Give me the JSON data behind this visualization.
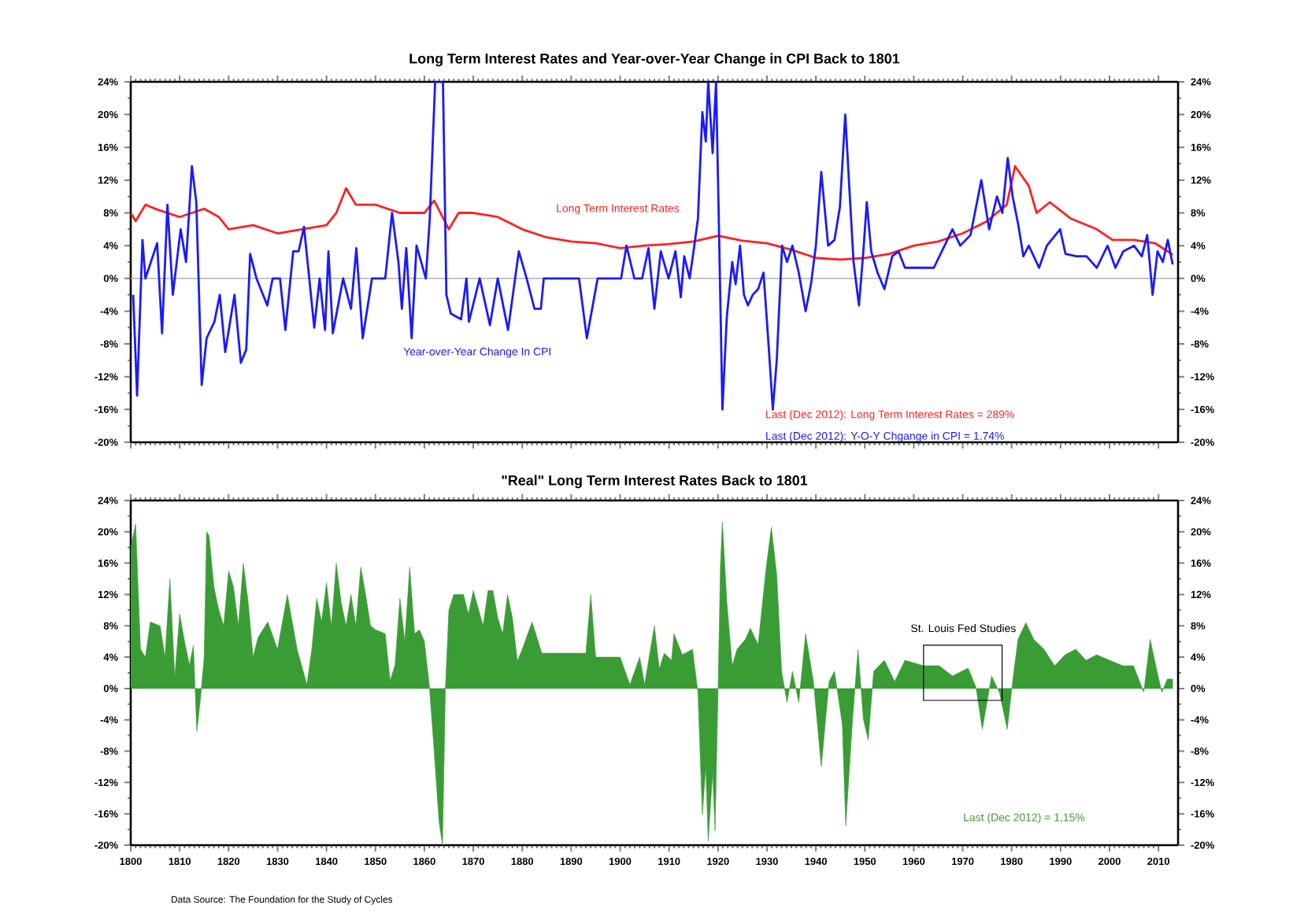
{
  "chart_data": [
    {
      "type": "line",
      "title": "Long Term Interest Rates and Year-over-Year Change in CPI Back to 1801",
      "xlim": [
        1800,
        2014
      ],
      "xticks": [
        1800,
        1810,
        1820,
        1830,
        1840,
        1850,
        1860,
        1870,
        1880,
        1890,
        1900,
        1910,
        1920,
        1930,
        1940,
        1950,
        1960,
        1970,
        1980,
        1990,
        2000,
        2010
      ],
      "ylim": [
        -20,
        24
      ],
      "yticks": [
        {
          "value": -20,
          "label": "-20%"
        },
        {
          "value": -16,
          "label": "-16%"
        },
        {
          "value": -12,
          "label": "-12%"
        },
        {
          "value": -8,
          "label": "-8%"
        },
        {
          "value": -4,
          "label": "-4%"
        },
        {
          "value": 0,
          "label": "0%"
        },
        {
          "value": 4,
          "label": "4%"
        },
        {
          "value": 8,
          "label": "8%"
        },
        {
          "value": 12,
          "label": "12%"
        },
        {
          "value": 16,
          "label": "16%"
        },
        {
          "value": 20,
          "label": "20%"
        },
        {
          "value": 24,
          "label": "24%"
        }
      ],
      "y2lim": [
        -20,
        24
      ],
      "y2ticks": [
        {
          "value": -20,
          "label": "-20%"
        },
        {
          "value": -16,
          "label": "-16%"
        },
        {
          "value": -12,
          "label": "-12%"
        },
        {
          "value": -8,
          "label": "-8%"
        },
        {
          "value": -4,
          "label": "-4%"
        },
        {
          "value": 0,
          "label": "0%"
        },
        {
          "value": 4,
          "label": "4%"
        },
        {
          "value": 8,
          "label": "8%"
        },
        {
          "value": 12,
          "label": "12%"
        },
        {
          "value": 16,
          "label": "16%"
        },
        {
          "value": 20,
          "label": "20%"
        },
        {
          "value": 24,
          "label": "24%"
        }
      ],
      "tick_labels": "y",
      "ref_lines": [
        {
          "axis": "y",
          "value": 0,
          "color": "#b4b4b4"
        }
      ],
      "annotations": [
        "Last (Dec 2012): Long Term Interest Rates = 289%",
        "Last (Dec 2012): Y-O-Y Chgange in CPI      = 1.74%"
      ],
      "series": [
        {
          "name": "Long Term Interest Rates",
          "color": "#ff2020",
          "x": [
            1800,
            1801,
            1803,
            1805,
            1810,
            1815,
            1818,
            1820,
            1825,
            1830,
            1835,
            1840,
            1842,
            1844,
            1846,
            1850,
            1855,
            1860,
            1862,
            1865,
            1867,
            1870,
            1875,
            1880,
            1885,
            1890,
            1895,
            1900,
            1905,
            1910,
            1915,
            1920,
            1925,
            1930,
            1935,
            1940,
            1945,
            1950,
            1955,
            1960,
            1965,
            1970,
            1975,
            1979,
            1980.7,
            1983.5,
            1985.1,
            1987.8,
            1992.1,
            1997.4,
            2000.6,
            2005,
            2009.3,
            2012.9
          ],
          "values": [
            8,
            7,
            9,
            8.5,
            7.5,
            8.5,
            7.5,
            6,
            6.5,
            5.5,
            6,
            6.5,
            8,
            11,
            9,
            9,
            8,
            8,
            9.5,
            6,
            8,
            8,
            7.5,
            6,
            5,
            4.5,
            4.3,
            3.7,
            4,
            4.2,
            4.5,
            5.2,
            4.6,
            4.3,
            3.5,
            2.5,
            2.3,
            2.5,
            3,
            4,
            4.5,
            5.5,
            7,
            9,
            13.7,
            11.3,
            8,
            9.3,
            7.3,
            6,
            4.7,
            4.7,
            4.3,
            2.9
          ]
        },
        {
          "name": "Year-over-Year Change In CPI",
          "color": "#1a1aff",
          "x": [
            1800.5,
            1801.3,
            1802.4,
            1803,
            1805.4,
            1806.4,
            1807.5,
            1808.6,
            1810.2,
            1811.3,
            1812.5,
            1813.4,
            1814.5,
            1815.5,
            1817.1,
            1818.2,
            1819.3,
            1821.2,
            1822.5,
            1823.6,
            1824.4,
            1825.7,
            1827.9,
            1829,
            1830.5,
            1831.6,
            1833.2,
            1834.3,
            1835.4,
            1837.5,
            1838.6,
            1839.7,
            1840.4,
            1841.3,
            1843.4,
            1845,
            1846.1,
            1847.4,
            1849.3,
            1852,
            1853.4,
            1854.7,
            1855.4,
            1856.3,
            1857.4,
            1858.4,
            1860.3,
            1861.1,
            1862.2,
            1863.8,
            1864.5,
            1865.4,
            1867.5,
            1868.6,
            1869.1,
            1871.3,
            1873.4,
            1875,
            1877.1,
            1879.3,
            1880.9,
            1882.5,
            1883.8,
            1884.4,
            1891.6,
            1893.2,
            1895.4,
            1900.2,
            1901.3,
            1902.9,
            1904.5,
            1905.8,
            1907,
            1908.3,
            1909.9,
            1911.3,
            1912.4,
            1913.1,
            1914.2,
            1915,
            1915.9,
            1916.8,
            1917.5,
            1918,
            1918.9,
            1919.6,
            1920.2,
            1920.9,
            1921.8,
            1922.9,
            1923.6,
            1924.5,
            1925.3,
            1926.1,
            1927.1,
            1928.2,
            1929.3,
            1930.4,
            1931.2,
            1932,
            1933.1,
            1934.1,
            1935.2,
            1936.5,
            1937.9,
            1939,
            1940,
            1941.1,
            1942.5,
            1943.8,
            1944.9,
            1946,
            1947,
            1947.7,
            1948.8,
            1949.7,
            1950.4,
            1951.3,
            1952.6,
            1954,
            1955.6,
            1956.9,
            1958.2,
            1959.8,
            1962,
            1964.1,
            1966.3,
            1967.9,
            1969.5,
            1971.6,
            1973.8,
            1975.4,
            1977,
            1978.1,
            1979.2,
            1980.2,
            1981.3,
            1982.4,
            1983.5,
            1985.6,
            1987.2,
            1989.9,
            1991,
            1993.2,
            1995.3,
            1997.4,
            1999.6,
            2001.2,
            2002.8,
            2005,
            2006.6,
            2007.7,
            2008.8,
            2009.8,
            2010.9,
            2011.9,
            2012.9
          ],
          "values": [
            -2,
            -14.3,
            4.7,
            0,
            4.3,
            -6.7,
            9,
            -2,
            6,
            2,
            13.7,
            9.3,
            -13,
            -7.3,
            -5.3,
            -2,
            -9,
            -2,
            -10.3,
            -8.7,
            3,
            0,
            -3.3,
            0,
            0,
            -6.3,
            3.3,
            3.3,
            6.3,
            -6,
            0,
            -6.3,
            3.3,
            -6.7,
            0,
            -3.7,
            3.7,
            -7.3,
            0,
            0,
            8,
            2,
            -3.7,
            3.7,
            -7.3,
            4,
            0,
            7.3,
            24,
            24,
            -2,
            -4.3,
            -5,
            0,
            -5.3,
            0,
            -5.7,
            0,
            -6.3,
            3.3,
            0,
            -3.7,
            -3.7,
            0,
            0,
            -7.3,
            0,
            0,
            4,
            0,
            0,
            3.7,
            -3.7,
            3.3,
            0,
            3.3,
            -2.3,
            2.7,
            0,
            3.3,
            7.3,
            20.3,
            16.7,
            24,
            15.3,
            24,
            6,
            -16,
            -4.7,
            2,
            -0.7,
            4,
            -2,
            -3.3,
            -2,
            -1.3,
            0.7,
            -8.7,
            -16,
            -10,
            4,
            2,
            4,
            0.7,
            -4,
            -0.7,
            4,
            13,
            4,
            4.7,
            8.7,
            20,
            9.3,
            2,
            -3.3,
            3.3,
            9.3,
            3.3,
            0.7,
            -1.3,
            2.7,
            3.3,
            1.3,
            1.3,
            1.3,
            1.3,
            4,
            6,
            4,
            5.3,
            12,
            6,
            10,
            8,
            14.7,
            10,
            6.7,
            2.7,
            4,
            1.3,
            4,
            6,
            3,
            2.7,
            2.7,
            1.3,
            4,
            1.3,
            3.3,
            4,
            2.7,
            5.3,
            -2,
            3.3,
            2,
            4.7,
            1.7
          ]
        }
      ]
    },
    {
      "type": "area",
      "title": "\"Real\" Long Term Interest Rates Back to 1801",
      "xlim": [
        1800,
        2014
      ],
      "xticks": [
        1800,
        1810,
        1820,
        1830,
        1840,
        1850,
        1860,
        1870,
        1880,
        1890,
        1900,
        1910,
        1920,
        1930,
        1940,
        1950,
        1960,
        1970,
        1980,
        1990,
        2000,
        2010
      ],
      "ylim": [
        -20,
        24
      ],
      "yticks": [
        {
          "value": -20,
          "label": "-20%"
        },
        {
          "value": -16,
          "label": "-16%"
        },
        {
          "value": -12,
          "label": "-12%"
        },
        {
          "value": -8,
          "label": "-8%"
        },
        {
          "value": -4,
          "label": "-4%"
        },
        {
          "value": 0,
          "label": "0%"
        },
        {
          "value": 4,
          "label": "4%"
        },
        {
          "value": 8,
          "label": "8%"
        },
        {
          "value": 12,
          "label": "12%"
        },
        {
          "value": 16,
          "label": "16%"
        },
        {
          "value": 20,
          "label": "20%"
        },
        {
          "value": 24,
          "label": "24%"
        }
      ],
      "y2lim": [
        -20,
        24
      ],
      "y2ticks": [
        {
          "value": -20,
          "label": "-20%"
        },
        {
          "value": -16,
          "label": "-16%"
        },
        {
          "value": -12,
          "label": "-12%"
        },
        {
          "value": -8,
          "label": "-8%"
        },
        {
          "value": -4,
          "label": "-4%"
        },
        {
          "value": 0,
          "label": "0%"
        },
        {
          "value": 4,
          "label": "4%"
        },
        {
          "value": 8,
          "label": "8%"
        },
        {
          "value": 12,
          "label": "12%"
        },
        {
          "value": 16,
          "label": "16%"
        },
        {
          "value": 20,
          "label": "20%"
        },
        {
          "value": 24,
          "label": "24%"
        }
      ],
      "annotations": [
        "Last (Dec 2012) = 1,15%",
        "St. Louis Fed Studies",
        "Data Source: The Foundation for the Study of Cycles"
      ],
      "series": [
        {
          "color": "#3a9c35",
          "x": [
            1800,
            1801,
            1802,
            1803,
            1804,
            1806,
            1807,
            1808,
            1809,
            1810,
            1811,
            1812,
            1812.8,
            1813.5,
            1814.3,
            1815,
            1815.5,
            1816,
            1817,
            1818,
            1819,
            1820,
            1821,
            1822,
            1823,
            1824,
            1825,
            1826,
            1828,
            1830,
            1832,
            1834,
            1836,
            1837,
            1838,
            1839,
            1840,
            1841,
            1842,
            1843,
            1844,
            1845,
            1846,
            1847,
            1848,
            1849,
            1850,
            1852,
            1853,
            1854,
            1855,
            1856,
            1857,
            1858,
            1859,
            1860,
            1861,
            1862,
            1863,
            1863.7,
            1864.3,
            1865,
            1866,
            1868,
            1869,
            1870,
            1872,
            1873,
            1874,
            1875,
            1876,
            1877,
            1878,
            1879,
            1880,
            1882,
            1884,
            1890,
            1893,
            1894,
            1895,
            1900,
            1902,
            1904,
            1905,
            1907,
            1908,
            1909,
            1910.5,
            1911,
            1912.7,
            1914.8,
            1915.9,
            1916.8,
            1917.5,
            1918,
            1918.9,
            1919.4,
            1920,
            1920.5,
            1920.9,
            1921.8,
            1922.9,
            1923.9,
            1925.6,
            1926.6,
            1928.2,
            1929.8,
            1930.9,
            1932,
            1933,
            1934.1,
            1935.2,
            1936.5,
            1937.9,
            1939.5,
            1941.1,
            1942.7,
            1943.8,
            1945.4,
            1946.1,
            1947.5,
            1948.6,
            1949.7,
            1950.7,
            1951.8,
            1954,
            1956.1,
            1958.2,
            1962,
            1965.2,
            1967.9,
            1971.1,
            1972.7,
            1974,
            1975.9,
            1977.5,
            1979.1,
            1980.2,
            1981.3,
            1982.9,
            1984.5,
            1986.6,
            1988.8,
            1990.9,
            1993.1,
            1995.2,
            1997.4,
            2000,
            2002.7,
            2004.9,
            2007,
            2008.3,
            2009.7,
            2010.7,
            2011.8,
            2012.9
          ],
          "values": [
            18,
            21,
            5,
            4,
            8.5,
            8,
            4,
            14,
            1.5,
            9.5,
            6,
            3,
            5.5,
            -5.5,
            -1,
            4,
            20,
            19.5,
            13,
            10,
            8,
            15,
            13,
            8,
            16,
            11,
            4,
            6.5,
            8.5,
            5,
            12,
            5,
            0.5,
            5,
            11.5,
            8.5,
            13.5,
            8,
            16,
            11,
            8,
            12,
            8,
            15.5,
            12,
            8,
            7.5,
            7,
            1,
            3,
            11.5,
            6,
            15.5,
            7,
            7.5,
            6,
            0.5,
            -8,
            -17,
            -20,
            0,
            10,
            12,
            12,
            9.5,
            12.5,
            8,
            12.5,
            12.5,
            9,
            7,
            12,
            9,
            3.5,
            5,
            8.5,
            4.5,
            4.5,
            4.5,
            12,
            4,
            4,
            0.5,
            4,
            0.5,
            8,
            2.5,
            4.5,
            3.6,
            7,
            4.3,
            5,
            -0.5,
            -16.1,
            -10,
            -19.5,
            -10.7,
            -18.2,
            -0.5,
            15.9,
            21.3,
            11.1,
            2.9,
            5,
            6.3,
            7.7,
            5.6,
            15.2,
            20.6,
            14.5,
            2.2,
            -1.8,
            2.2,
            -1.8,
            7,
            0.9,
            -10,
            0.9,
            2.2,
            -4.6,
            -17.5,
            -3.9,
            5,
            -3.9,
            -6.6,
            2.2,
            3.6,
            0.9,
            3.6,
            2.9,
            2.9,
            1.6,
            2.6,
            0.2,
            -5.2,
            1.6,
            -0.5,
            -5.2,
            0.9,
            6.3,
            8.4,
            6.3,
            5,
            2.9,
            4.3,
            5,
            3.6,
            4.3,
            3.6,
            2.9,
            2.9,
            -0.5,
            6.3,
            2.2,
            -0.5,
            1.2,
            1.2
          ]
        }
      ]
    }
  ]
}
